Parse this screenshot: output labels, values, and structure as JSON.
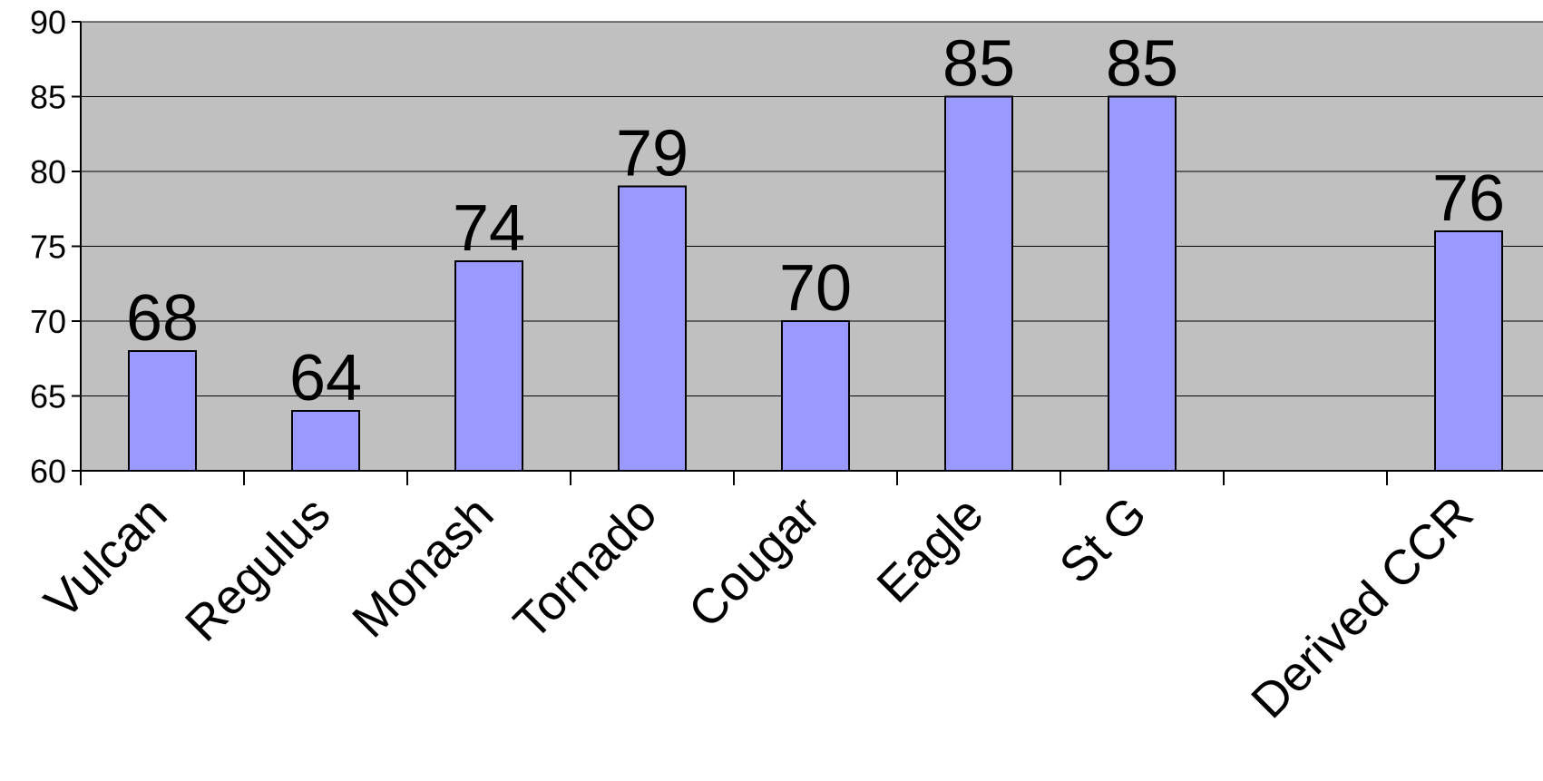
{
  "chart_data": {
    "type": "bar",
    "categories": [
      "Vulcan",
      "Regulus",
      "Monash",
      "Tornado",
      "Cougar",
      "Eagle",
      "St G",
      "",
      "Derived CCR"
    ],
    "values": [
      68,
      64,
      74,
      79,
      70,
      85,
      85,
      null,
      76
    ],
    "data_labels": [
      "68",
      "64",
      "74",
      "79",
      "70",
      "85",
      "85",
      "",
      "76"
    ],
    "title": "",
    "xlabel": "",
    "ylabel": "",
    "ylim": [
      60,
      90
    ],
    "yticks": [
      60,
      65,
      70,
      75,
      80,
      85,
      90
    ],
    "ytick_labels": [
      "60",
      "65",
      "70",
      "75",
      "80",
      "85",
      "90"
    ],
    "grid": true,
    "legend": "none",
    "colors": {
      "plot_background": "#c0c0c0",
      "bar_fill": "#9999ff",
      "bar_stroke": "#000000",
      "gridline": "#000000"
    }
  }
}
